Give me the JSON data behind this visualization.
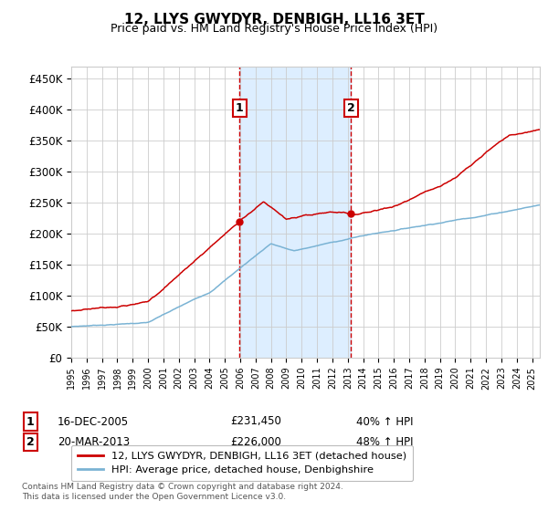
{
  "title": "12, LLYS GWYDYR, DENBIGH, LL16 3ET",
  "subtitle": "Price paid vs. HM Land Registry's House Price Index (HPI)",
  "ylabel_ticks": [
    "£0",
    "£50K",
    "£100K",
    "£150K",
    "£200K",
    "£250K",
    "£300K",
    "£350K",
    "£400K",
    "£450K"
  ],
  "ylim": [
    0,
    470000
  ],
  "xlim_start": 1995.0,
  "xlim_end": 2025.5,
  "sale1_x": 2005.96,
  "sale1_y": 231450,
  "sale2_x": 2013.22,
  "sale2_y": 226000,
  "sale1_date": "16-DEC-2005",
  "sale1_price": "£231,450",
  "sale1_pct": "40% ↑ HPI",
  "sale2_date": "20-MAR-2013",
  "sale2_price": "£226,000",
  "sale2_pct": "48% ↑ HPI",
  "hpi_line_color": "#7ab3d4",
  "price_line_color": "#cc0000",
  "sale_marker_color": "#cc0000",
  "shade_color": "#ddeeff",
  "grid_color": "#cccccc",
  "legend_label1": "12, LLYS GWYDYR, DENBIGH, LL16 3ET (detached house)",
  "legend_label2": "HPI: Average price, detached house, Denbighshire",
  "footnote": "Contains HM Land Registry data © Crown copyright and database right 2024.\nThis data is licensed under the Open Government Licence v3.0.",
  "background_color": "#ffffff"
}
